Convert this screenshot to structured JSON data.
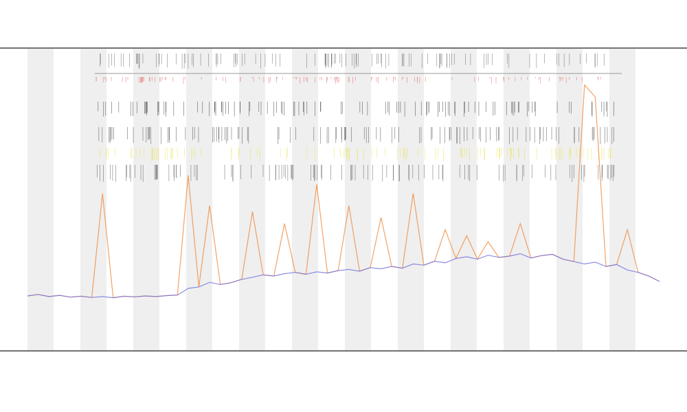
{
  "chart_data": {
    "type": "line",
    "series": [
      {
        "color": "#6f6fe0",
        "values": [
          18,
          18.5,
          17.8,
          18.2,
          17.6,
          17.9,
          17.5,
          17.8,
          17.4,
          17.9,
          17.7,
          18,
          17.8,
          18.1,
          18.3,
          20.5,
          21,
          22.5,
          21.8,
          22.4,
          23.5,
          24.2,
          25,
          24.6,
          25.4,
          25.8,
          25.2,
          26,
          25.6,
          26.4,
          26.8,
          26.2,
          27.4,
          27,
          27.8,
          27.2,
          28.6,
          28.2,
          29.5,
          29,
          30.4,
          31,
          30.2,
          31.5,
          30.8,
          31.2,
          32,
          30.6,
          31.4,
          31.8,
          30.2,
          29.4,
          28.6,
          29.2,
          27.8,
          28.4,
          26.6,
          25.8,
          24.6,
          22.8
        ]
      },
      {
        "color": "#f08a3c",
        "values": [
          18,
          18.5,
          17.8,
          18.2,
          17.6,
          17.9,
          17.5,
          52,
          17.4,
          17.9,
          17.7,
          18,
          17.8,
          18.1,
          18.3,
          58,
          21,
          48,
          21.8,
          22.4,
          23.5,
          46,
          25,
          24.6,
          42,
          25.8,
          25.2,
          55,
          25.6,
          26.4,
          48,
          26.2,
          27.4,
          44,
          27.8,
          27.2,
          52,
          28.2,
          29.5,
          40,
          30.4,
          38,
          30.2,
          36,
          30.8,
          31.2,
          42,
          30.6,
          31.4,
          31.8,
          30.2,
          29.4,
          88,
          84,
          27.8,
          28.4,
          40,
          25.8,
          24.6,
          22.8
        ]
      }
    ],
    "ylim": [
      0,
      100
    ]
  }
}
